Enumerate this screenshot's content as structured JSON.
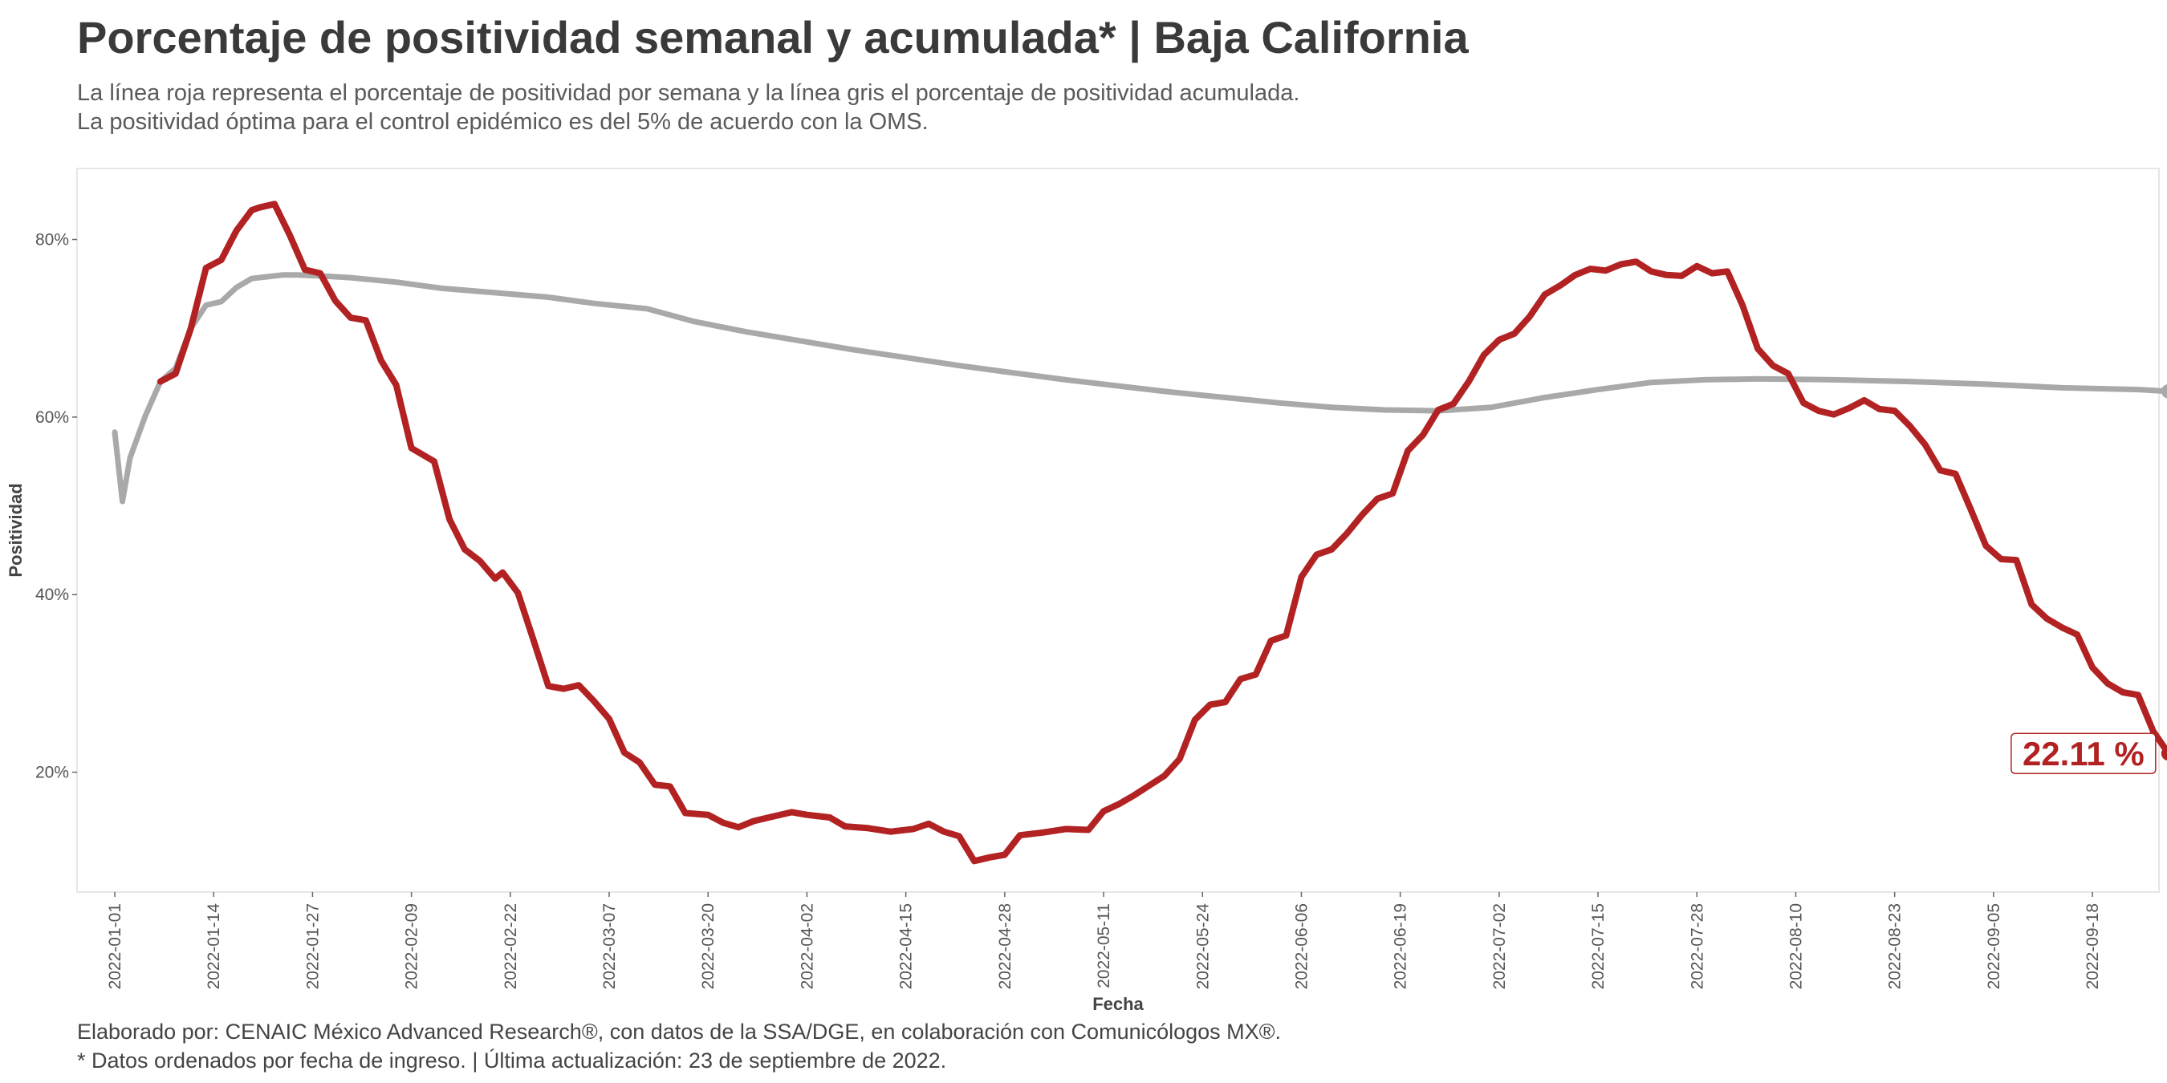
{
  "header": {
    "title": "Porcentaje de positividad semanal y acumulada* | Baja California",
    "subtitle_line1": "La línea roja representa el porcentaje de positividad por semana y la línea gris el porcentaje de positividad acumulada.",
    "subtitle_line2": "La positividad óptima para el control epidémico es del 5% de acuerdo con la OMS."
  },
  "caption": {
    "line1": "Elaborado por: CENAIC México Advanced Research®, con datos de la SSA/DGE, en colaboración con Comunicólogos MX®.",
    "line2": "* Datos ordenados por fecha de ingreso. | Última actualización: 23 de septiembre de 2022."
  },
  "chart_data": {
    "type": "line",
    "xlabel": "Fecha",
    "ylabel": "Positividad",
    "x_range": [
      "2022-01-01",
      "2022-09-22"
    ],
    "ylim": [
      6.5,
      88
    ],
    "y_ticks": [
      20,
      40,
      60,
      80
    ],
    "y_tick_labels": [
      "20%",
      "40%",
      "60%",
      "80%"
    ],
    "x_ticks": [
      "2022-01-01",
      "2022-01-14",
      "2022-01-27",
      "2022-02-09",
      "2022-02-22",
      "2022-03-07",
      "2022-03-20",
      "2022-04-02",
      "2022-04-15",
      "2022-04-28",
      "2022-05-11",
      "2022-05-24",
      "2022-06-06",
      "2022-06-19",
      "2022-07-02",
      "2022-07-15",
      "2022-07-28",
      "2022-08-10",
      "2022-08-23",
      "2022-09-05",
      "2022-09-18"
    ],
    "end_label": "22.11 %",
    "colors": {
      "weekly": "#b22222",
      "cumulative": "#a9a9a9"
    },
    "series": [
      {
        "key": "weekly",
        "points": [
          [
            "2022-01-07",
            64.0
          ],
          [
            "2022-01-09",
            64.9
          ],
          [
            "2022-01-11",
            70.0
          ],
          [
            "2022-01-13",
            76.8
          ],
          [
            "2022-01-15",
            77.7
          ],
          [
            "2022-01-17",
            81.0
          ],
          [
            "2022-01-19",
            83.3
          ],
          [
            "2022-01-20",
            83.6
          ],
          [
            "2022-01-22",
            84.0
          ],
          [
            "2022-01-24",
            80.5
          ],
          [
            "2022-01-26",
            76.6
          ],
          [
            "2022-01-28",
            76.2
          ],
          [
            "2022-01-30",
            73.1
          ],
          [
            "2022-02-01",
            71.2
          ],
          [
            "2022-02-03",
            70.9
          ],
          [
            "2022-02-05",
            66.4
          ],
          [
            "2022-02-07",
            63.6
          ],
          [
            "2022-02-09",
            56.5
          ],
          [
            "2022-02-12",
            55.0
          ],
          [
            "2022-02-14",
            48.5
          ],
          [
            "2022-02-16",
            45.1
          ],
          [
            "2022-02-18",
            43.8
          ],
          [
            "2022-02-20",
            41.8
          ],
          [
            "2022-02-21",
            42.5
          ],
          [
            "2022-02-23",
            40.2
          ],
          [
            "2022-02-25",
            35.0
          ],
          [
            "2022-02-27",
            29.7
          ],
          [
            "2022-03-01",
            29.4
          ],
          [
            "2022-03-03",
            29.8
          ],
          [
            "2022-03-05",
            28.0
          ],
          [
            "2022-03-07",
            26.0
          ],
          [
            "2022-03-09",
            22.2
          ],
          [
            "2022-03-11",
            21.1
          ],
          [
            "2022-03-13",
            18.6
          ],
          [
            "2022-03-15",
            18.4
          ],
          [
            "2022-03-17",
            15.4
          ],
          [
            "2022-03-20",
            15.2
          ],
          [
            "2022-03-22",
            14.3
          ],
          [
            "2022-03-24",
            13.8
          ],
          [
            "2022-03-26",
            14.5
          ],
          [
            "2022-03-28",
            14.9
          ],
          [
            "2022-03-31",
            15.5
          ],
          [
            "2022-04-02",
            15.2
          ],
          [
            "2022-04-05",
            14.9
          ],
          [
            "2022-04-07",
            13.9
          ],
          [
            "2022-04-10",
            13.7
          ],
          [
            "2022-04-13",
            13.3
          ],
          [
            "2022-04-16",
            13.6
          ],
          [
            "2022-04-18",
            14.2
          ],
          [
            "2022-04-20",
            13.3
          ],
          [
            "2022-04-22",
            12.8
          ],
          [
            "2022-04-24",
            10.0
          ],
          [
            "2022-04-26",
            10.4
          ],
          [
            "2022-04-28",
            10.7
          ],
          [
            "2022-04-30",
            12.9
          ],
          [
            "2022-05-03",
            13.2
          ],
          [
            "2022-05-06",
            13.6
          ],
          [
            "2022-05-09",
            13.5
          ],
          [
            "2022-05-11",
            15.6
          ],
          [
            "2022-05-13",
            16.4
          ],
          [
            "2022-05-15",
            17.4
          ],
          [
            "2022-05-17",
            18.5
          ],
          [
            "2022-05-19",
            19.6
          ],
          [
            "2022-05-21",
            21.5
          ],
          [
            "2022-05-23",
            25.9
          ],
          [
            "2022-05-25",
            27.6
          ],
          [
            "2022-05-27",
            27.9
          ],
          [
            "2022-05-29",
            30.5
          ],
          [
            "2022-05-31",
            31.0
          ],
          [
            "2022-06-02",
            34.8
          ],
          [
            "2022-06-04",
            35.4
          ],
          [
            "2022-06-06",
            42.0
          ],
          [
            "2022-06-08",
            44.5
          ],
          [
            "2022-06-10",
            45.1
          ],
          [
            "2022-06-12",
            46.9
          ],
          [
            "2022-06-14",
            49.0
          ],
          [
            "2022-06-16",
            50.8
          ],
          [
            "2022-06-18",
            51.4
          ],
          [
            "2022-06-20",
            56.2
          ],
          [
            "2022-06-22",
            58.0
          ],
          [
            "2022-06-24",
            60.8
          ],
          [
            "2022-06-26",
            61.5
          ],
          [
            "2022-06-28",
            64.0
          ],
          [
            "2022-06-30",
            67.0
          ],
          [
            "2022-07-02",
            68.7
          ],
          [
            "2022-07-04",
            69.4
          ],
          [
            "2022-07-06",
            71.3
          ],
          [
            "2022-07-08",
            73.8
          ],
          [
            "2022-07-10",
            74.8
          ],
          [
            "2022-07-12",
            76.0
          ],
          [
            "2022-07-14",
            76.7
          ],
          [
            "2022-07-16",
            76.5
          ],
          [
            "2022-07-18",
            77.2
          ],
          [
            "2022-07-20",
            77.5
          ],
          [
            "2022-07-22",
            76.4
          ],
          [
            "2022-07-24",
            76.0
          ],
          [
            "2022-07-26",
            75.9
          ],
          [
            "2022-07-28",
            77.0
          ],
          [
            "2022-07-30",
            76.2
          ],
          [
            "2022-08-01",
            76.4
          ],
          [
            "2022-08-03",
            72.6
          ],
          [
            "2022-08-05",
            67.7
          ],
          [
            "2022-08-07",
            65.8
          ],
          [
            "2022-08-09",
            64.9
          ],
          [
            "2022-08-11",
            61.6
          ],
          [
            "2022-08-13",
            60.7
          ],
          [
            "2022-08-15",
            60.3
          ],
          [
            "2022-08-17",
            61.0
          ],
          [
            "2022-08-19",
            61.9
          ],
          [
            "2022-08-21",
            60.9
          ],
          [
            "2022-08-23",
            60.7
          ],
          [
            "2022-08-25",
            59.0
          ],
          [
            "2022-08-27",
            56.9
          ],
          [
            "2022-08-29",
            54.0
          ],
          [
            "2022-08-31",
            53.6
          ],
          [
            "2022-09-02",
            49.6
          ],
          [
            "2022-09-04",
            45.5
          ],
          [
            "2022-09-06",
            44.0
          ],
          [
            "2022-09-08",
            43.9
          ],
          [
            "2022-09-10",
            38.9
          ],
          [
            "2022-09-12",
            37.3
          ],
          [
            "2022-09-14",
            36.3
          ],
          [
            "2022-09-16",
            35.5
          ],
          [
            "2022-09-18",
            31.8
          ],
          [
            "2022-09-20",
            30.0
          ],
          [
            "2022-09-22",
            29.0
          ],
          [
            "2022-09-24",
            28.7
          ],
          [
            "2022-09-26",
            24.6
          ],
          [
            "2022-09-28",
            22.11
          ]
        ]
      },
      {
        "key": "cumulative",
        "points": [
          [
            "2022-01-01",
            58.3
          ],
          [
            "2022-01-02",
            50.5
          ],
          [
            "2022-01-03",
            55.4
          ],
          [
            "2022-01-05",
            60.1
          ],
          [
            "2022-01-07",
            64.0
          ],
          [
            "2022-01-09",
            65.5
          ],
          [
            "2022-01-11",
            70.0
          ],
          [
            "2022-01-13",
            72.6
          ],
          [
            "2022-01-15",
            73.0
          ],
          [
            "2022-01-17",
            74.6
          ],
          [
            "2022-01-19",
            75.6
          ],
          [
            "2022-01-21",
            75.8
          ],
          [
            "2022-01-23",
            76.0
          ],
          [
            "2022-01-25",
            76.0
          ],
          [
            "2022-01-28",
            75.9
          ],
          [
            "2022-02-01",
            75.7
          ],
          [
            "2022-02-07",
            75.2
          ],
          [
            "2022-02-13",
            74.5
          ],
          [
            "2022-02-20",
            74.0
          ],
          [
            "2022-02-27",
            73.5
          ],
          [
            "2022-03-05",
            72.8
          ],
          [
            "2022-03-12",
            72.2
          ],
          [
            "2022-03-18",
            70.8
          ],
          [
            "2022-03-25",
            69.6
          ],
          [
            "2022-04-01",
            68.6
          ],
          [
            "2022-04-08",
            67.6
          ],
          [
            "2022-04-15",
            66.7
          ],
          [
            "2022-04-22",
            65.8
          ],
          [
            "2022-04-29",
            65.0
          ],
          [
            "2022-05-06",
            64.2
          ],
          [
            "2022-05-13",
            63.5
          ],
          [
            "2022-05-20",
            62.8
          ],
          [
            "2022-05-27",
            62.2
          ],
          [
            "2022-06-03",
            61.6
          ],
          [
            "2022-06-10",
            61.1
          ],
          [
            "2022-06-17",
            60.8
          ],
          [
            "2022-06-24",
            60.7
          ],
          [
            "2022-07-01",
            61.1
          ],
          [
            "2022-07-08",
            62.2
          ],
          [
            "2022-07-15",
            63.1
          ],
          [
            "2022-07-22",
            63.9
          ],
          [
            "2022-07-29",
            64.2
          ],
          [
            "2022-08-05",
            64.3
          ],
          [
            "2022-08-15",
            64.2
          ],
          [
            "2022-08-25",
            64.0
          ],
          [
            "2022-09-04",
            63.7
          ],
          [
            "2022-09-14",
            63.3
          ],
          [
            "2022-09-24",
            63.1
          ],
          [
            "2022-09-28",
            62.9
          ]
        ]
      }
    ]
  }
}
